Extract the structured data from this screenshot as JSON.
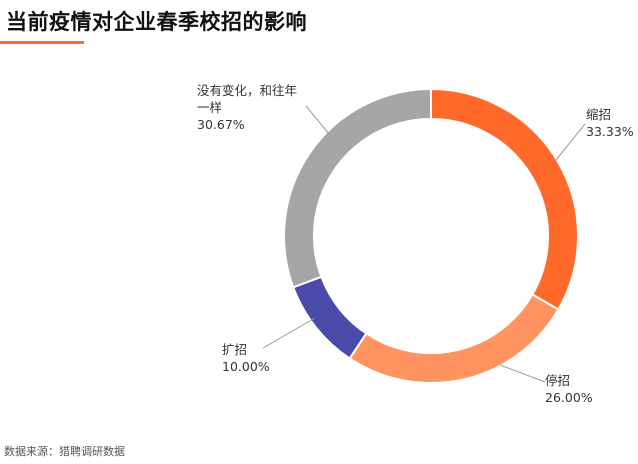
{
  "title": "当前疫情对企业春季校招的影响",
  "accent": "#ff6a2b",
  "source": "数据来源：猎聘调研数据",
  "chart_data": {
    "type": "pie",
    "variant": "donut",
    "title": "当前疫情对企业春季校招的影响",
    "slices": [
      {
        "label": "缩招",
        "value": 33.33,
        "value_text": "33.33%",
        "color": "#ff6a2b"
      },
      {
        "label": "停招",
        "value": 26.0,
        "value_text": "26.00%",
        "color": "#ff9461"
      },
      {
        "label": "扩招",
        "value": 10.0,
        "value_text": "10.00%",
        "color": "#4a4aa8"
      },
      {
        "label_lines": [
          "没有变化，和往年",
          "一样"
        ],
        "value": 30.67,
        "value_text": "30.67%",
        "color": "#a6a6a6"
      }
    ]
  }
}
